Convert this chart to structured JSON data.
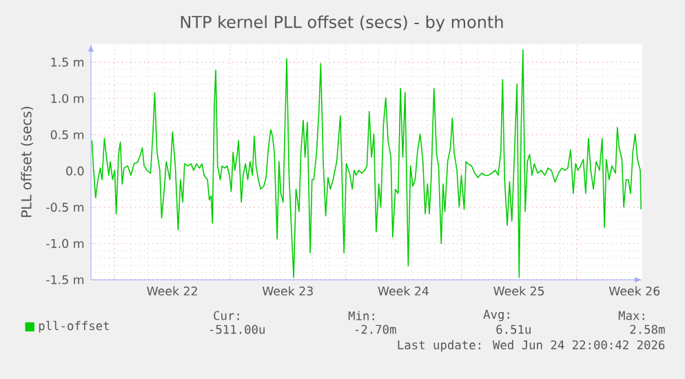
{
  "chart_data": {
    "type": "line",
    "title": "NTP kernel PLL offset (secs) - by month",
    "ylabel": "PLL offset (secs)",
    "x": [
      "2026-05-22T15:06",
      "2026-05-22T17:02",
      "2026-05-22T20:23",
      "2026-05-22T23:45",
      "2026-05-23T03:06",
      "2026-05-23T05:45",
      "2026-05-23T09:06",
      "2026-05-23T12:14",
      "2026-05-23T15:35",
      "2026-05-23T17:45",
      "2026-05-23T21:06",
      "2026-05-24T00:14",
      "2026-05-24T02:23",
      "2026-05-24T05:45",
      "2026-05-24T08:23",
      "2026-05-24T11:02",
      "2026-05-24T13:40",
      "2026-05-24T18:57",
      "2026-05-24T23:45",
      "2026-05-25T04:18",
      "2026-05-25T09:35",
      "2026-05-25T13:40",
      "2026-05-25T16:18",
      "2026-05-25T18:57",
      "2026-05-25T23:02",
      "2026-05-26T04:18",
      "2026-05-26T07:40",
      "2026-05-26T10:18",
      "2026-05-26T13:40",
      "2026-05-26T17:45",
      "2026-05-26T20:23",
      "2026-05-27T00:14",
      "2026-05-27T03:06",
      "2026-05-27T08:23",
      "2026-05-27T12:14",
      "2026-05-27T16:18",
      "2026-05-27T20:23",
      "2026-05-27T23:45",
      "2026-05-28T03:06",
      "2026-05-28T05:45",
      "2026-05-28T11:02",
      "2026-05-28T15:06",
      "2026-05-28T18:57",
      "2026-05-28T23:02",
      "2026-05-29T03:35",
      "2026-05-29T06:57",
      "2026-05-29T10:18",
      "2026-05-29T15:06",
      "2026-05-29T17:45",
      "2026-05-29T20:23",
      "2026-05-29T22:18",
      "2026-05-30T00:57",
      "2026-05-30T03:06",
      "2026-05-30T05:45",
      "2026-05-30T09:35",
      "2026-05-30T12:14",
      "2026-05-30T16:18",
      "2026-05-30T19:40",
      "2026-05-30T23:02",
      "2026-05-31T01:40",
      "2026-05-31T04:18",
      "2026-05-31T06:57",
      "2026-05-31T10:18",
      "2026-05-31T12:14",
      "2026-05-31T16:18",
      "2026-05-31T18:57",
      "2026-05-31T22:18",
      "2026-06-01T01:40",
      "2026-06-01T05:02",
      "2026-06-01T08:23",
      "2026-06-01T11:02",
      "2026-06-01T13:40",
      "2026-06-01T17:02",
      "2026-06-01T20:23",
      "2026-06-02T00:57",
      "2026-06-02T04:18",
      "2026-06-02T07:40",
      "2026-06-02T11:02",
      "2026-06-02T13:40",
      "2026-06-02T16:18",
      "2026-06-02T20:23",
      "2026-06-02T23:02",
      "2026-06-03T01:40",
      "2026-06-03T05:02",
      "2026-06-03T06:57",
      "2026-06-03T10:18",
      "2026-06-03T13:40",
      "2026-06-03T17:02",
      "2026-06-03T20:23",
      "2026-06-03T23:45",
      "2026-06-04T04:18",
      "2026-06-04T06:57",
      "2026-06-04T10:18",
      "2026-06-04T12:57",
      "2026-06-04T16:18",
      "2026-06-04T20:23",
      "2026-06-04T23:02",
      "2026-06-05T01:40",
      "2026-06-05T05:45",
      "2026-06-05T09:06",
      "2026-06-05T11:45",
      "2026-06-05T15:35",
      "2026-06-05T18:57",
      "2026-06-05T22:18",
      "2026-06-06T01:40",
      "2026-06-06T05:45",
      "2026-06-06T11:02",
      "2026-06-06T16:18",
      "2026-06-06T21:35",
      "2026-06-07T00:57",
      "2026-06-07T05:45",
      "2026-06-07T09:35",
      "2026-06-07T12:14",
      "2026-06-07T15:06",
      "2026-06-07T18:57",
      "2026-06-07T23:02",
      "2026-06-08T03:35",
      "2026-06-08T06:57",
      "2026-06-08T10:18",
      "2026-06-08T13:40",
      "2026-06-08T17:02",
      "2026-06-08T20:23",
      "2026-06-09T00:14",
      "2026-06-09T03:06",
      "2026-06-09T06:57",
      "2026-06-09T10:18",
      "2026-06-09T13:40",
      "2026-06-09T17:45",
      "2026-06-09T20:23",
      "2026-06-10T00:14",
      "2026-06-10T04:18",
      "2026-06-10T07:40",
      "2026-06-10T11:02",
      "2026-06-10T14:23",
      "2026-06-10T18:57",
      "2026-06-10T22:18",
      "2026-06-11T01:40",
      "2026-06-11T05:02",
      "2026-06-11T08:23",
      "2026-06-11T12:14",
      "2026-06-11T16:18",
      "2026-06-11T19:40",
      "2026-06-11T23:02",
      "2026-06-12T01:40",
      "2026-06-12T04:18",
      "2026-06-12T08:23",
      "2026-06-12T12:14",
      "2026-06-12T15:06",
      "2026-06-12T18:57",
      "2026-06-12T21:35",
      "2026-06-13T00:14",
      "2026-06-13T04:18",
      "2026-06-13T08:23",
      "2026-06-13T11:02",
      "2026-06-13T13:40",
      "2026-06-13T17:45",
      "2026-06-13T21:06",
      "2026-06-14T00:14",
      "2026-06-14T04:18",
      "2026-06-14T06:57",
      "2026-06-14T09:35",
      "2026-06-14T15:06",
      "2026-06-14T19:40",
      "2026-06-15T00:14",
      "2026-06-15T05:45",
      "2026-06-15T11:02",
      "2026-06-15T15:35",
      "2026-06-15T20:23",
      "2026-06-16T01:40",
      "2026-06-16T05:45",
      "2026-06-16T09:35",
      "2026-06-16T12:14",
      "2026-06-16T15:06",
      "2026-06-16T18:57",
      "2026-06-16T22:18",
      "2026-06-17T01:40",
      "2026-06-17T05:45",
      "2026-06-17T09:06",
      "2026-06-17T12:14",
      "2026-06-17T15:06",
      "2026-06-17T17:45",
      "2026-06-17T21:06",
      "2026-06-18T00:14",
      "2026-06-18T03:35",
      "2026-06-18T06:57",
      "2026-06-18T10:18",
      "2026-06-18T15:06",
      "2026-06-18T20:23",
      "2026-06-19T01:40",
      "2026-06-19T06:14",
      "2026-06-19T11:02",
      "2026-06-19T16:18",
      "2026-06-19T21:35",
      "2026-06-20T02:23",
      "2026-06-20T06:57",
      "2026-06-20T11:02",
      "2026-06-20T15:06",
      "2026-06-20T18:57",
      "2026-06-20T22:18",
      "2026-06-21T01:40",
      "2026-06-21T05:45",
      "2026-06-21T09:35",
      "2026-06-21T12:57",
      "2026-06-21T17:02",
      "2026-06-21T20:23",
      "2026-06-22T00:14",
      "2026-06-22T04:18",
      "2026-06-22T09:06",
      "2026-06-22T12:57",
      "2026-06-22T16:18",
      "2026-06-22T18:57",
      "2026-06-22T23:02",
      "2026-06-23T03:06",
      "2026-06-23T08:23",
      "2026-06-23T11:02",
      "2026-06-23T13:40",
      "2026-06-23T17:45",
      "2026-06-23T20:23",
      "2026-06-23T23:45",
      "2026-06-24T03:06",
      "2026-06-24T06:14",
      "2026-06-24T09:35",
      "2026-06-24T12:57",
      "2026-06-24T16:18",
      "2026-06-24T20:23",
      "2026-06-24T21:35"
    ],
    "series": [
      {
        "name": "pll-offset",
        "color": "#00cc00",
        "values": [
          0.42,
          0.07,
          -0.37,
          -0.12,
          0.04,
          -0.12,
          0.45,
          0.19,
          -0.06,
          0.13,
          -0.12,
          0.01,
          -0.59,
          0.23,
          0.4,
          -0.18,
          0.04,
          0.07,
          -0.06,
          0.1,
          0.12,
          0.23,
          0.32,
          0.07,
          0.01,
          -0.03,
          0.51,
          1.08,
          0.26,
          0.01,
          -0.65,
          -0.25,
          0.13,
          -0.12,
          0.54,
          0.07,
          -0.81,
          -0.12,
          -0.43,
          0.1,
          0.07,
          0.1,
          0.01,
          0.1,
          0.04,
          0.1,
          -0.06,
          -0.12,
          -0.4,
          -0.34,
          -0.72,
          0.89,
          1.39,
          0.07,
          -0.12,
          0.07,
          0.04,
          0.07,
          -0.06,
          -0.28,
          0.26,
          0.01,
          0.23,
          0.42,
          -0.43,
          -0.06,
          0.1,
          -0.12,
          0.13,
          -0.06,
          0.48,
          0.07,
          -0.12,
          -0.25,
          -0.21,
          -0.09,
          0.32,
          0.57,
          0.48,
          0.26,
          -0.94,
          0.13,
          -0.31,
          -0.43,
          0.32,
          1.55,
          -0.06,
          -0.78,
          -1.47,
          -0.25,
          -0.56,
          0.26,
          0.7,
          0.19,
          0.67,
          -1.13,
          -0.12,
          -0.12,
          0.26,
          0.82,
          1.48,
          0.07,
          -0.62,
          -0.09,
          -0.25,
          -0.12,
          0.13,
          0.76,
          -1.13,
          0.1,
          -0.03,
          -0.25,
          0.01,
          -0.06,
          0.01,
          -0.03,
          0.01,
          0.07,
          0.82,
          0.19,
          0.51,
          -0.84,
          -0.18,
          -0.5,
          0.64,
          1.01,
          0.42,
          0.19,
          -0.91,
          -0.25,
          -0.31,
          1.14,
          0.19,
          1.08,
          -1.31,
          0.07,
          -0.21,
          -0.12,
          0.26,
          0.51,
          0.13,
          -0.59,
          -0.18,
          -0.59,
          -0.12,
          1.14,
          0.23,
          0.07,
          -1.0,
          -0.18,
          -0.56,
          0.13,
          0.32,
          0.73,
          0.26,
          0.01,
          -0.5,
          -0.06,
          -0.53,
          0.13,
          0.1,
          0.07,
          -0.03,
          -0.09,
          -0.03,
          -0.06,
          -0.06,
          -0.03,
          0.01,
          -0.06,
          0.26,
          1.26,
          -0.12,
          -0.75,
          -0.15,
          -0.69,
          0.32,
          1.2,
          -1.47,
          0.57,
          1.67,
          -0.56,
          0.13,
          0.23,
          -0.06,
          0.1,
          -0.03,
          0.01,
          -0.06,
          0.04,
          0.01,
          -0.15,
          -0.03,
          0.04,
          0.01,
          0.04,
          0.29,
          -0.31,
          0.1,
          0.01,
          0.07,
          0.16,
          -0.31,
          0.45,
          0.01,
          -0.25,
          0.13,
          0.01,
          0.45,
          -0.78,
          0.16,
          -0.12,
          0.07,
          -0.03,
          0.6,
          0.32,
          0.16,
          -0.5,
          -0.12,
          -0.12,
          -0.31,
          0.26,
          0.51,
          0.16,
          0.01,
          -0.53
        ]
      }
    ],
    "xlim": [
      "2026-05-22T13:40",
      "2026-06-24T23:16"
    ],
    "xticks": [
      {
        "value": "2026-05-24T00:00",
        "label": null
      },
      {
        "value": "2026-05-27T12:00",
        "label": "Week 22"
      },
      {
        "value": "2026-05-31T00:00",
        "label": null
      },
      {
        "value": "2026-06-03T12:00",
        "label": "Week 23"
      },
      {
        "value": "2026-06-07T00:00",
        "label": null
      },
      {
        "value": "2026-06-10T12:00",
        "label": "Week 24"
      },
      {
        "value": "2026-06-14T00:00",
        "label": null
      },
      {
        "value": "2026-06-17T12:00",
        "label": "Week 25"
      },
      {
        "value": "2026-06-21T00:00",
        "label": null
      },
      {
        "value": "2026-06-24T12:00",
        "label": "Week 26"
      }
    ],
    "ylim": [
      -1.5,
      1.75
    ],
    "yticks": [
      {
        "value": -1.5,
        "label": "-1.5 m"
      },
      {
        "value": -1.0,
        "label": "-1.0 m"
      },
      {
        "value": -0.5,
        "label": "-0.5 m"
      },
      {
        "value": 0,
        "label": "0.0"
      },
      {
        "value": 0.5,
        "label": "0.5 m"
      },
      {
        "value": 1.0,
        "label": "1.0 m"
      },
      {
        "value": 1.5,
        "label": "1.5 m"
      }
    ],
    "grid": true,
    "legend": "bottom",
    "annotations": [
      "Cur:",
      "Min:",
      "Avg:",
      "Max:",
      "-511.00u",
      "-2.70m",
      "6.51u",
      "2.58m",
      "Last update: Wed Jun 24 22:00:42 2026"
    ]
  }
}
